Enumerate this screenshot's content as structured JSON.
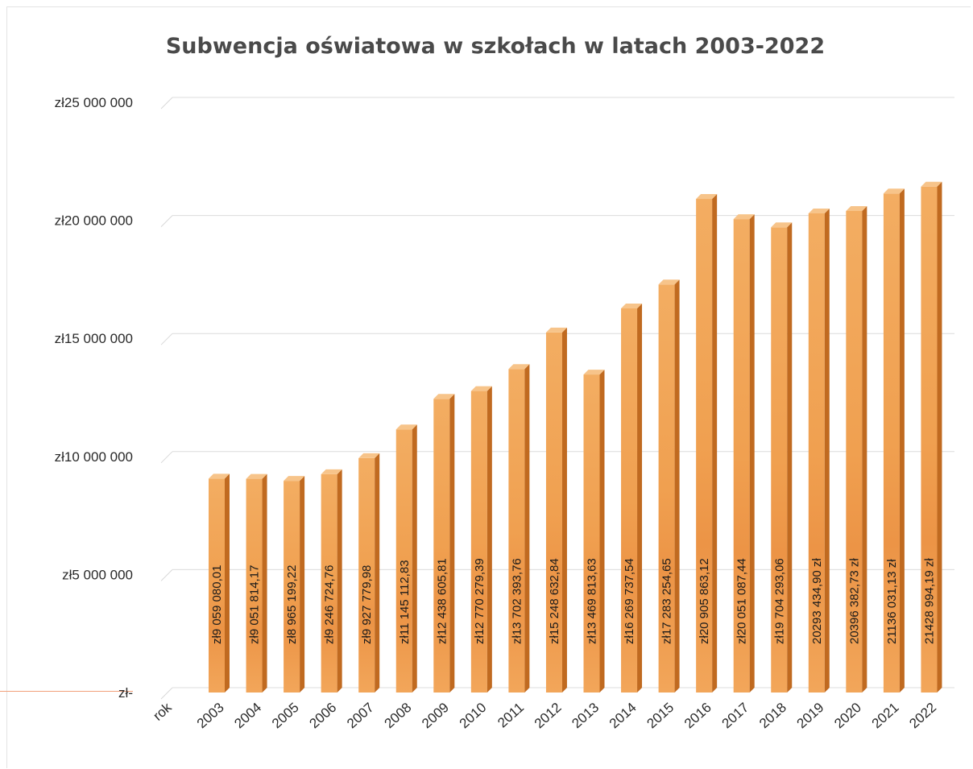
{
  "chart_data": {
    "type": "bar",
    "title": "Subwencja oświatowa w szkołach w latach 2003-2022",
    "xlabel": "rok",
    "ylabel": "",
    "ylim": [
      0,
      25000000
    ],
    "y_ticks": [
      {
        "value": 0,
        "label": "zł-"
      },
      {
        "value": 5000000,
        "label": "zł5 000 000"
      },
      {
        "value": 10000000,
        "label": "zł10 000 000"
      },
      {
        "value": 15000000,
        "label": "zł15 000 000"
      },
      {
        "value": 20000000,
        "label": "zł20 000 000"
      },
      {
        "value": 25000000,
        "label": "zł25 000 000"
      }
    ],
    "grid": true,
    "bar_color": "#f0a050",
    "bar_side_color": "#c06a20",
    "bar_top_color": "#f7c48a",
    "categories": [
      "2003",
      "2004",
      "2005",
      "2006",
      "2007",
      "2008",
      "2009",
      "2010",
      "2011",
      "2012",
      "2013",
      "2014",
      "2015",
      "2016",
      "2017",
      "2018",
      "2019",
      "2020",
      "2021",
      "2022"
    ],
    "values": [
      9059080.01,
      9051814.17,
      8965199.22,
      9246724.76,
      9927779.98,
      11145112.83,
      12438605.81,
      12770279.39,
      13702393.76,
      15248632.84,
      13469813.63,
      16269737.54,
      17283254.65,
      20905863.12,
      20051087.44,
      19704293.06,
      20293434.9,
      20396382.73,
      21136031.13,
      21428994.19
    ],
    "data_labels": [
      "zł9 059 080,01",
      "zł9 051 814,17",
      "zł8 965 199,22",
      "zł9 246 724,76",
      "zł9 927 779,98",
      "zł11 145 112,83",
      "zł12 438 605,81",
      "zł12 770 279,39",
      "zł13 702 393,76",
      "zł15 248 632,84",
      "zł13 469 813,63",
      "zł16 269 737,54",
      "zł17 283 254,65",
      "zł20 905 863,12",
      "zł20 051 087,44",
      "zł19 704 293,06",
      "20293 434,90 zł",
      "20396 382,73 zł",
      "21136 031,13 zł",
      "21428 994,19 zł"
    ]
  }
}
